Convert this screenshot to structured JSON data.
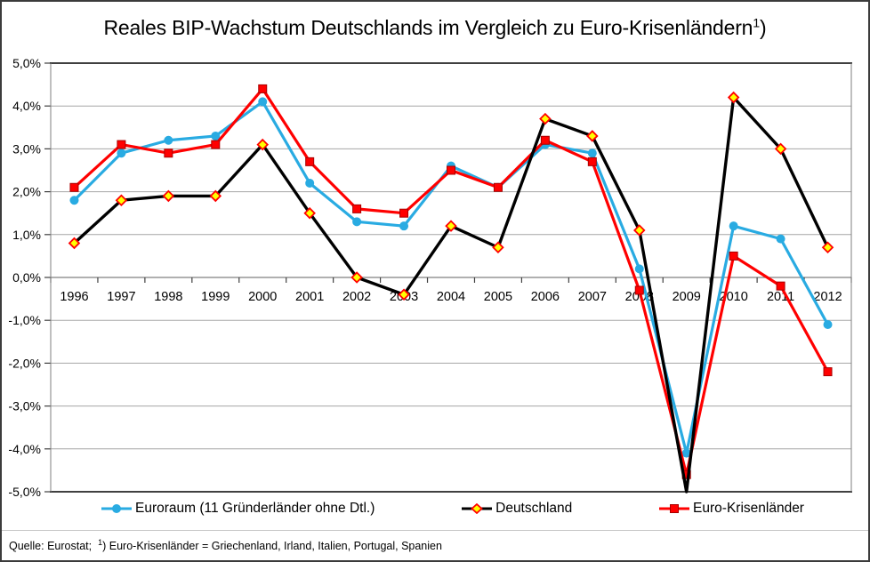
{
  "title": {
    "text": "Reales BIP-Wachstum Deutschlands im Vergleich zu Euro-Krisenländern",
    "footnote_mark": "1",
    "footnote_paren": ")"
  },
  "footer": {
    "source": "Quelle: Eurostat;",
    "footnote_mark": "1",
    "note": ") Euro-Krisenländer = Griechenland, Irland, Italien, Portugal, Spanien"
  },
  "chart_data": {
    "type": "line",
    "categories": [
      "1996",
      "1997",
      "1998",
      "1999",
      "2000",
      "2001",
      "2002",
      "2003",
      "2004",
      "2005",
      "2006",
      "2007",
      "2008",
      "2009",
      "2010",
      "2011",
      "2012"
    ],
    "series": [
      {
        "id": "euroraum",
        "name": "Euroraum (11 Gründerländer ohne Dtl.)",
        "color": "#29ABE2",
        "marker": "circle",
        "marker_fill": "#29ABE2",
        "marker_stroke": "#29ABE2",
        "values": [
          1.8,
          2.9,
          3.2,
          3.3,
          4.1,
          2.2,
          1.3,
          1.2,
          2.6,
          2.1,
          3.1,
          2.9,
          0.2,
          -4.1,
          1.2,
          0.9,
          -1.1
        ]
      },
      {
        "id": "deutschland",
        "name": "Deutschland",
        "color": "#000000",
        "marker": "diamond",
        "marker_fill": "#FFFF00",
        "marker_stroke": "#FF0000",
        "values": [
          0.8,
          1.8,
          1.9,
          1.9,
          3.1,
          1.5,
          0.0,
          -0.4,
          1.2,
          0.7,
          3.7,
          3.3,
          1.1,
          -5.1,
          4.2,
          3.0,
          0.7
        ]
      },
      {
        "id": "euro-krisenlaender",
        "name": "Euro-Krisenländer",
        "color": "#FF0000",
        "marker": "square",
        "marker_fill": "#FF0000",
        "marker_stroke": "#A80000",
        "values": [
          2.1,
          3.1,
          2.9,
          3.1,
          4.4,
          2.7,
          1.6,
          1.5,
          2.5,
          2.1,
          3.2,
          2.7,
          -0.3,
          -4.6,
          0.5,
          -0.2,
          -2.2
        ]
      }
    ],
    "ylim": [
      -5,
      5
    ],
    "y_ticks": [
      "5,0%",
      "4,0%",
      "3,0%",
      "2,0%",
      "1,0%",
      "0,0%",
      "-1,0%",
      "-2,0%",
      "-3,0%",
      "-4,0%",
      "-5,0%"
    ],
    "grid": "horizontal",
    "legend_position": "bottom",
    "colors": {
      "grid": "#A6A6A6",
      "zero_axis": "#808080",
      "tick": "#404040",
      "plot_border": "#000000",
      "plot_border_side": "#7F7F7F"
    }
  }
}
